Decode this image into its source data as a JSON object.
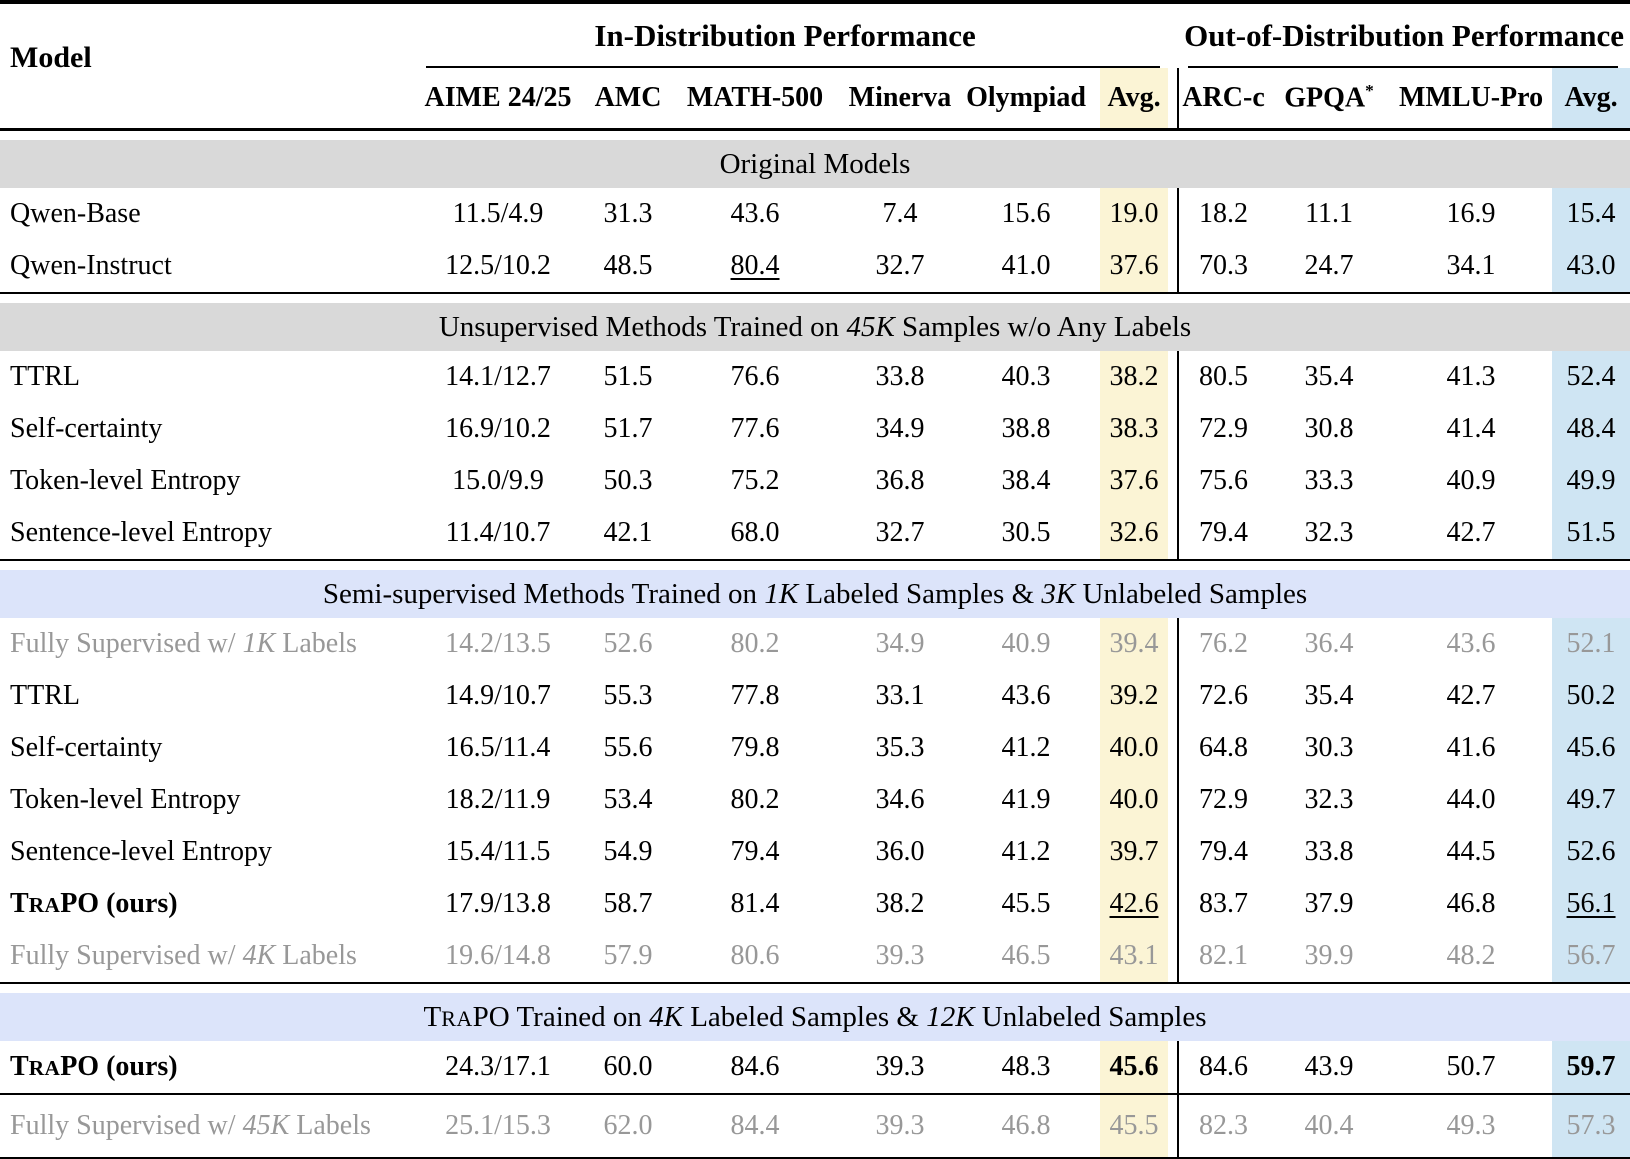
{
  "colors": {
    "avg_in_distribution_bg": "#fbf4d5",
    "avg_out_distribution_bg": "#cfe5f3",
    "section_band_gray": "#d9d9d9",
    "section_band_blue": "#dce4fa",
    "muted_row_text": "#989898"
  },
  "table": {
    "model_header": "Model",
    "groups": [
      {
        "segs": [
          {
            "t": "In-Distribution Performance"
          }
        ]
      },
      {
        "segs": [
          {
            "t": "Out-of-Distribution Performance"
          }
        ]
      }
    ],
    "columns": [
      {
        "segs": [
          {
            "t": "AIME 24/25"
          }
        ]
      },
      {
        "segs": [
          {
            "t": "AMC"
          }
        ]
      },
      {
        "segs": [
          {
            "t": "MATH-500"
          }
        ]
      },
      {
        "segs": [
          {
            "t": "Minerva"
          }
        ]
      },
      {
        "segs": [
          {
            "t": "Olympiad"
          }
        ]
      },
      {
        "segs": [
          {
            "t": "Avg."
          }
        ]
      },
      {
        "segs": [
          {
            "t": "ARC-c"
          }
        ]
      },
      {
        "segs": [
          {
            "t": "GPQA"
          },
          {
            "t": "*",
            "s": "sup"
          }
        ]
      },
      {
        "segs": [
          {
            "t": "MMLU-Pro"
          }
        ]
      },
      {
        "segs": [
          {
            "t": "Avg."
          }
        ]
      }
    ],
    "sections": [
      {
        "band": {
          "color": "gray",
          "segs": [
            {
              "t": "Original Models"
            }
          ]
        },
        "rule_above": false,
        "rows": [
          {
            "model": {
              "segs": [
                {
                  "t": "Qwen-Base"
                }
              ]
            },
            "values": [
              "11.5/4.9",
              "31.3",
              "43.6",
              "7.4",
              "15.6",
              "19.0",
              "18.2",
              "11.1",
              "16.9",
              "15.4"
            ]
          },
          {
            "model": {
              "segs": [
                {
                  "t": "Qwen-Instruct"
                }
              ]
            },
            "values": [
              "12.5/10.2",
              "48.5",
              "80.4",
              "32.7",
              "41.0",
              "37.6",
              "70.3",
              "24.7",
              "34.1",
              "43.0"
            ],
            "underline": [
              2
            ]
          }
        ]
      },
      {
        "band": {
          "color": "gray",
          "segs": [
            {
              "t": "Unsupervised Methods Trained on "
            },
            {
              "t": "45K",
              "s": "i"
            },
            {
              "t": " Samples w/o Any Labels"
            }
          ]
        },
        "rule_above": true,
        "rows": [
          {
            "model": {
              "segs": [
                {
                  "t": "TTRL"
                }
              ]
            },
            "values": [
              "14.1/12.7",
              "51.5",
              "76.6",
              "33.8",
              "40.3",
              "38.2",
              "80.5",
              "35.4",
              "41.3",
              "52.4"
            ]
          },
          {
            "model": {
              "segs": [
                {
                  "t": "Self-certainty"
                }
              ]
            },
            "values": [
              "16.9/10.2",
              "51.7",
              "77.6",
              "34.9",
              "38.8",
              "38.3",
              "72.9",
              "30.8",
              "41.4",
              "48.4"
            ]
          },
          {
            "model": {
              "segs": [
                {
                  "t": "Token-level Entropy"
                }
              ]
            },
            "values": [
              "15.0/9.9",
              "50.3",
              "75.2",
              "36.8",
              "38.4",
              "37.6",
              "75.6",
              "33.3",
              "40.9",
              "49.9"
            ]
          },
          {
            "model": {
              "segs": [
                {
                  "t": "Sentence-level Entropy"
                }
              ]
            },
            "values": [
              "11.4/10.7",
              "42.1",
              "68.0",
              "32.7",
              "30.5",
              "32.6",
              "79.4",
              "32.3",
              "42.7",
              "51.5"
            ]
          }
        ]
      },
      {
        "band": {
          "color": "blue",
          "segs": [
            {
              "t": "Semi-supervised Methods Trained on "
            },
            {
              "t": "1K",
              "s": "i"
            },
            {
              "t": " Labeled Samples & "
            },
            {
              "t": "3K",
              "s": "i"
            },
            {
              "t": " Unlabeled Samples"
            }
          ]
        },
        "rule_above": true,
        "rows": [
          {
            "model": {
              "segs": [
                {
                  "t": "Fully Supervised w/ "
                },
                {
                  "t": "1K",
                  "s": "i"
                },
                {
                  "t": " Labels"
                }
              ]
            },
            "muted": true,
            "values": [
              "14.2/13.5",
              "52.6",
              "80.2",
              "34.9",
              "40.9",
              "39.4",
              "76.2",
              "36.4",
              "43.6",
              "52.1"
            ]
          },
          {
            "model": {
              "segs": [
                {
                  "t": "TTRL"
                }
              ]
            },
            "values": [
              "14.9/10.7",
              "55.3",
              "77.8",
              "33.1",
              "43.6",
              "39.2",
              "72.6",
              "35.4",
              "42.7",
              "50.2"
            ]
          },
          {
            "model": {
              "segs": [
                {
                  "t": "Self-certainty"
                }
              ]
            },
            "values": [
              "16.5/11.4",
              "55.6",
              "79.8",
              "35.3",
              "41.2",
              "40.0",
              "64.8",
              "30.3",
              "41.6",
              "45.6"
            ]
          },
          {
            "model": {
              "segs": [
                {
                  "t": "Token-level Entropy"
                }
              ]
            },
            "values": [
              "18.2/11.9",
              "53.4",
              "80.2",
              "34.6",
              "41.9",
              "40.0",
              "72.9",
              "32.3",
              "44.0",
              "49.7"
            ]
          },
          {
            "model": {
              "segs": [
                {
                  "t": "Sentence-level Entropy"
                }
              ]
            },
            "values": [
              "15.4/11.5",
              "54.9",
              "79.4",
              "36.0",
              "41.2",
              "39.7",
              "79.4",
              "33.8",
              "44.5",
              "52.6"
            ]
          },
          {
            "model": {
              "segs": [
                {
                  "t": "T"
                },
                {
                  "t": "ra",
                  "s": "sc"
                },
                {
                  "t": "PO (ours)"
                }
              ]
            },
            "bold": true,
            "values": [
              "17.9/13.8",
              "58.7",
              "81.4",
              "38.2",
              "45.5",
              "42.6",
              "83.7",
              "37.9",
              "46.8",
              "56.1"
            ],
            "underline": [
              5,
              9
            ]
          },
          {
            "model": {
              "segs": [
                {
                  "t": "Fully Supervised w/ "
                },
                {
                  "t": "4K",
                  "s": "i"
                },
                {
                  "t": " Labels"
                }
              ]
            },
            "muted": true,
            "values": [
              "19.6/14.8",
              "57.9",
              "80.6",
              "39.3",
              "46.5",
              "43.1",
              "82.1",
              "39.9",
              "48.2",
              "56.7"
            ]
          }
        ]
      },
      {
        "band": {
          "color": "blue",
          "segs": [
            {
              "t": "T"
            },
            {
              "t": "ra",
              "s": "sc"
            },
            {
              "t": "PO Trained on "
            },
            {
              "t": "4K",
              "s": "i"
            },
            {
              "t": " Labeled Samples & "
            },
            {
              "t": "12K",
              "s": "i"
            },
            {
              "t": " Unlabeled Samples"
            }
          ]
        },
        "rule_above": true,
        "rows": [
          {
            "model": {
              "segs": [
                {
                  "t": "T"
                },
                {
                  "t": "ra",
                  "s": "sc"
                },
                {
                  "t": "PO (ours)"
                }
              ]
            },
            "bold": true,
            "values": [
              "24.3/17.1",
              "60.0",
              "84.6",
              "39.3",
              "48.3",
              "45.6",
              "84.6",
              "43.9",
              "50.7",
              "59.7"
            ],
            "bold_vals": [
              5,
              9
            ]
          },
          {
            "model": {
              "segs": [
                {
                  "t": "Fully Supervised w/ "
                },
                {
                  "t": "45K",
                  "s": "i"
                },
                {
                  "t": " Labels"
                }
              ]
            },
            "muted": true,
            "rule_above": true,
            "values": [
              "25.1/15.3",
              "62.0",
              "84.4",
              "39.3",
              "46.8",
              "45.5",
              "82.3",
              "40.4",
              "49.3",
              "57.3"
            ]
          }
        ]
      }
    ]
  }
}
